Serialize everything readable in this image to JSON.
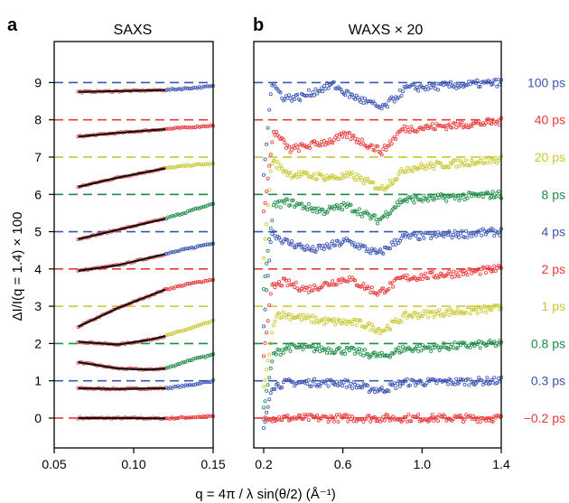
{
  "chart_data": [
    {
      "panel_letter": "a",
      "title": "SAXS",
      "type": "scatter",
      "xlim": [
        0.05,
        0.15
      ],
      "ylim": [
        -0.8,
        10.1
      ],
      "xticks": [
        {
          "v": 0.05,
          "label": "0.05"
        },
        {
          "v": 0.1,
          "label": "0.10"
        },
        {
          "v": 0.15,
          "label": "0.15"
        }
      ],
      "yticks": [
        0,
        1,
        2,
        3,
        4,
        5,
        6,
        7,
        8,
        9
      ],
      "ylabel": "ΔI/I(q = 1.4) × 100",
      "series": [
        {
          "level": 0,
          "color": "#e83a3a",
          "value_points": [
            [
              0.065,
              0.0
            ],
            [
              0.085,
              0.0
            ],
            [
              0.1,
              0.0
            ],
            [
              0.12,
              -0.01
            ],
            [
              0.135,
              0.02
            ],
            [
              0.15,
              0.05
            ]
          ]
        },
        {
          "level": 1,
          "color": "#3a55b4",
          "value_points": [
            [
              0.065,
              0.8
            ],
            [
              0.09,
              0.78
            ],
            [
              0.12,
              0.8
            ],
            [
              0.135,
              0.88
            ],
            [
              0.15,
              1.0
            ]
          ]
        },
        {
          "level": 2,
          "color": "#1e8c46",
          "value_points": [
            [
              0.065,
              1.5
            ],
            [
              0.09,
              1.33
            ],
            [
              0.11,
              1.3
            ],
            [
              0.12,
              1.33
            ],
            [
              0.135,
              1.55
            ],
            [
              0.15,
              1.7
            ]
          ]
        },
        {
          "level": 3,
          "color": "#c8c832",
          "value_points": [
            [
              0.065,
              2.05
            ],
            [
              0.09,
              1.97
            ],
            [
              0.11,
              2.1
            ],
            [
              0.12,
              2.2
            ],
            [
              0.135,
              2.4
            ],
            [
              0.15,
              2.6
            ]
          ]
        },
        {
          "level": 4,
          "color": "#e83a3a",
          "value_points": [
            [
              0.065,
              2.45
            ],
            [
              0.09,
              2.95
            ],
            [
              0.12,
              3.45
            ],
            [
              0.135,
              3.6
            ],
            [
              0.15,
              3.72
            ]
          ]
        },
        {
          "level": 5,
          "color": "#3a55b4",
          "value_points": [
            [
              0.065,
              3.95
            ],
            [
              0.09,
              4.1
            ],
            [
              0.12,
              4.4
            ],
            [
              0.135,
              4.55
            ],
            [
              0.15,
              4.7
            ]
          ]
        },
        {
          "level": 6,
          "color": "#1e8c46",
          "value_points": [
            [
              0.065,
              4.8
            ],
            [
              0.09,
              5.05
            ],
            [
              0.12,
              5.35
            ],
            [
              0.135,
              5.55
            ],
            [
              0.15,
              5.75
            ]
          ]
        },
        {
          "level": 7,
          "color": "#c8c832",
          "value_points": [
            [
              0.065,
              6.2
            ],
            [
              0.09,
              6.45
            ],
            [
              0.12,
              6.7
            ],
            [
              0.135,
              6.78
            ],
            [
              0.15,
              6.82
            ]
          ]
        },
        {
          "level": 8,
          "color": "#e83a3a",
          "value_points": [
            [
              0.065,
              7.55
            ],
            [
              0.09,
              7.65
            ],
            [
              0.12,
              7.75
            ],
            [
              0.135,
              7.8
            ],
            [
              0.15,
              7.85
            ]
          ]
        },
        {
          "level": 9,
          "color": "#3a55b4",
          "value_points": [
            [
              0.065,
              8.75
            ],
            [
              0.09,
              8.77
            ],
            [
              0.12,
              8.8
            ],
            [
              0.135,
              8.85
            ],
            [
              0.15,
              8.9
            ]
          ]
        }
      ],
      "fit_range": [
        0.065,
        0.12
      ]
    },
    {
      "panel_letter": "b",
      "title": "WAXS × 20",
      "type": "scatter",
      "xlim": [
        0.15,
        1.4
      ],
      "ylim": [
        -0.8,
        10.1
      ],
      "xticks": [
        {
          "v": 0.2,
          "label": "0.2"
        },
        {
          "v": 0.6,
          "label": "0.6"
        },
        {
          "v": 1.0,
          "label": "1.0"
        },
        {
          "v": 1.4,
          "label": "1.4"
        }
      ],
      "xlabel": "q = 4π / λ sin(θ/2) (Å⁻¹)",
      "series": [
        {
          "level": 0,
          "color": "#e83a3a",
          "name": "−0.2 ps",
          "value_points": [
            [
              0.2,
              0.0
            ],
            [
              1.4,
              0.0
            ]
          ]
        },
        {
          "level": 1,
          "color": "#3a55b4",
          "name": "0.3 ps",
          "value_points": [
            [
              0.2,
              -0.3
            ],
            [
              0.24,
              0.85
            ],
            [
              0.32,
              0.95
            ],
            [
              0.6,
              0.95
            ],
            [
              0.72,
              0.8
            ],
            [
              0.8,
              0.75
            ],
            [
              0.9,
              0.95
            ],
            [
              1.4,
              1.0
            ]
          ]
        },
        {
          "level": 2,
          "color": "#1e8c46",
          "name": "0.8 ps",
          "value_points": [
            [
              0.2,
              0.3
            ],
            [
              0.25,
              1.7
            ],
            [
              0.32,
              1.9
            ],
            [
              0.5,
              1.85
            ],
            [
              0.65,
              1.8
            ],
            [
              0.8,
              1.65
            ],
            [
              0.9,
              1.85
            ],
            [
              1.4,
              2.0
            ]
          ]
        },
        {
          "level": 3,
          "color": "#c8c832",
          "name": "1 ps",
          "value_points": [
            [
              0.2,
              0.8
            ],
            [
              0.26,
              2.8
            ],
            [
              0.33,
              2.75
            ],
            [
              0.5,
              2.6
            ],
            [
              0.68,
              2.55
            ],
            [
              0.8,
              2.35
            ],
            [
              0.92,
              2.75
            ],
            [
              1.4,
              2.95
            ]
          ]
        },
        {
          "level": 4,
          "color": "#e83a3a",
          "name": "2 ps",
          "value_points": [
            [
              0.2,
              1.7
            ],
            [
              0.24,
              3.5
            ],
            [
              0.3,
              3.65
            ],
            [
              0.42,
              3.45
            ],
            [
              0.62,
              3.75
            ],
            [
              0.78,
              3.35
            ],
            [
              0.9,
              3.75
            ],
            [
              1.4,
              4.0
            ]
          ]
        },
        {
          "level": 5,
          "color": "#3a55b4",
          "name": "4 ps",
          "value_points": [
            [
              0.2,
              2.5
            ],
            [
              0.24,
              5.0
            ],
            [
              0.3,
              4.75
            ],
            [
              0.45,
              4.5
            ],
            [
              0.62,
              4.75
            ],
            [
              0.78,
              4.4
            ],
            [
              0.9,
              4.85
            ],
            [
              1.4,
              5.0
            ]
          ]
        },
        {
          "level": 6,
          "color": "#1e8c46",
          "name": "8 ps",
          "value_points": [
            [
              0.2,
              3.5
            ],
            [
              0.25,
              5.7
            ],
            [
              0.32,
              5.8
            ],
            [
              0.5,
              5.55
            ],
            [
              0.62,
              5.7
            ],
            [
              0.78,
              5.3
            ],
            [
              0.9,
              5.85
            ],
            [
              1.4,
              6.0
            ]
          ]
        },
        {
          "level": 7,
          "color": "#c8c832",
          "name": "20 ps",
          "value_points": [
            [
              0.2,
              4.3
            ],
            [
              0.24,
              6.9
            ],
            [
              0.33,
              6.55
            ],
            [
              0.55,
              6.45
            ],
            [
              0.65,
              6.5
            ],
            [
              0.8,
              6.15
            ],
            [
              0.92,
              6.7
            ],
            [
              1.4,
              6.95
            ]
          ]
        },
        {
          "level": 8,
          "color": "#e83a3a",
          "name": "40 ps",
          "value_points": [
            [
              0.2,
              5.5
            ],
            [
              0.25,
              7.7
            ],
            [
              0.33,
              7.2
            ],
            [
              0.55,
              7.45
            ],
            [
              0.62,
              7.6
            ],
            [
              0.8,
              7.15
            ],
            [
              0.9,
              7.75
            ],
            [
              1.4,
              7.95
            ]
          ]
        },
        {
          "level": 9,
          "color": "#3a55b4",
          "name": "100 ps",
          "value_points": [
            [
              0.2,
              6.5
            ],
            [
              0.24,
              9.0
            ],
            [
              0.3,
              8.6
            ],
            [
              0.38,
              8.6
            ],
            [
              0.55,
              8.95
            ],
            [
              0.62,
              8.7
            ],
            [
              0.8,
              8.3
            ],
            [
              0.92,
              8.85
            ],
            [
              1.4,
              9.0
            ]
          ]
        }
      ]
    }
  ]
}
